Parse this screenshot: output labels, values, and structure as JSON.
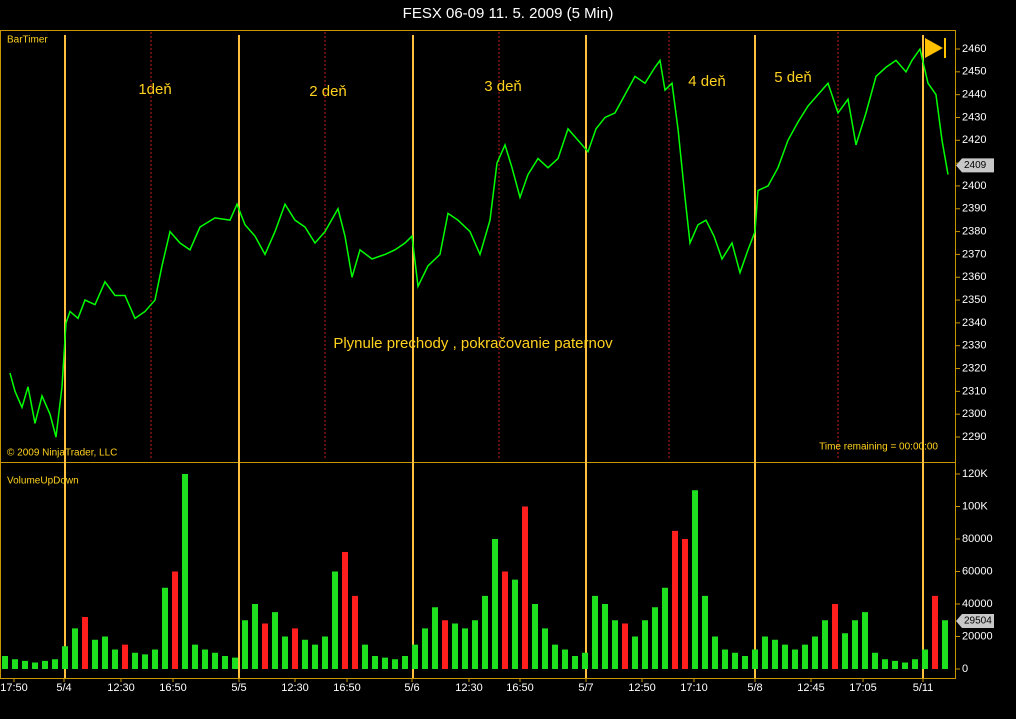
{
  "chart_data": [
    {
      "type": "line",
      "title": "FESX 06-09  11. 5. 2009 (5 Min)",
      "label": "BarTimer",
      "copyright": "© 2009 NinjaTrader, LLC",
      "status": "Time remaining = 00:00:00",
      "annotations": [
        "1deň",
        "2 deň",
        "3 deň",
        "4 deň",
        "5 deň",
        "Plynule prechody , pokračovanie paternov"
      ],
      "color": "#00ff00",
      "last_value": 2409,
      "xlim": [
        0,
        955
      ],
      "ylim": [
        2290,
        2460
      ],
      "yticks": [
        2290,
        2300,
        2310,
        2320,
        2330,
        2340,
        2350,
        2360,
        2370,
        2380,
        2390,
        2400,
        2410,
        2420,
        2430,
        2440,
        2450,
        2460
      ],
      "x": [
        10,
        15,
        22,
        28,
        35,
        42,
        50,
        56,
        62,
        66,
        70,
        78,
        85,
        95,
        105,
        115,
        125,
        135,
        145,
        155,
        162,
        170,
        180,
        190,
        200,
        215,
        230,
        237,
        245,
        255,
        265,
        275,
        285,
        295,
        305,
        315,
        325,
        338,
        345,
        352,
        360,
        372,
        385,
        395,
        405,
        412,
        418,
        428,
        440,
        448,
        458,
        470,
        480,
        490,
        497,
        505,
        512,
        520,
        528,
        538,
        548,
        558,
        568,
        578,
        588,
        596,
        605,
        615,
        625,
        635,
        645,
        655,
        660,
        665,
        672,
        678,
        685,
        690,
        698,
        706,
        714,
        722,
        732,
        740,
        748,
        755,
        758,
        768,
        778,
        788,
        798,
        808,
        818,
        828,
        838,
        848,
        856,
        866,
        876,
        886,
        896,
        906,
        912,
        920,
        928,
        936,
        942,
        948
      ],
      "values": [
        2318,
        2310,
        2303,
        2312,
        2296,
        2308,
        2300,
        2290,
        2312,
        2340,
        2345,
        2342,
        2350,
        2348,
        2358,
        2352,
        2352,
        2342,
        2345,
        2350,
        2365,
        2380,
        2375,
        2372,
        2382,
        2386,
        2385,
        2392,
        2383,
        2378,
        2370,
        2380,
        2392,
        2385,
        2382,
        2375,
        2380,
        2390,
        2378,
        2360,
        2372,
        2368,
        2370,
        2372,
        2375,
        2378,
        2356,
        2365,
        2370,
        2388,
        2385,
        2380,
        2370,
        2385,
        2410,
        2418,
        2408,
        2395,
        2405,
        2412,
        2408,
        2412,
        2425,
        2420,
        2415,
        2425,
        2430,
        2432,
        2440,
        2448,
        2445,
        2452,
        2455,
        2442,
        2445,
        2425,
        2395,
        2375,
        2383,
        2385,
        2378,
        2368,
        2375,
        2362,
        2372,
        2380,
        2398,
        2400,
        2408,
        2420,
        2428,
        2435,
        2440,
        2445,
        2432,
        2438,
        2418,
        2432,
        2448,
        2452,
        2455,
        2450,
        2455,
        2460,
        2445,
        2440,
        2420,
        2405
      ]
    },
    {
      "type": "bar",
      "label": "VolumeUpDown",
      "last_value": 29504,
      "xlim": [
        0,
        955
      ],
      "ylim": [
        0,
        120000
      ],
      "yticks": [
        0,
        20000,
        40000,
        60000,
        80000,
        {
          "value": 100000,
          "label": "100K"
        },
        {
          "value": 120000,
          "label": "120K"
        }
      ],
      "xticks": [
        {
          "value": 14,
          "label": "17:50"
        },
        {
          "value": 64,
          "label": "5/4"
        },
        {
          "value": 121,
          "label": "12:30"
        },
        {
          "value": 173,
          "label": "16:50"
        },
        {
          "value": 239,
          "label": "5/5"
        },
        {
          "value": 295,
          "label": "12:30"
        },
        {
          "value": 347,
          "label": "16:50"
        },
        {
          "value": 412,
          "label": "5/6"
        },
        {
          "value": 469,
          "label": "12:30"
        },
        {
          "value": 520,
          "label": "16:50"
        },
        {
          "value": 586,
          "label": "5/7"
        },
        {
          "value": 642,
          "label": "12:50"
        },
        {
          "value": 694,
          "label": "17:10"
        },
        {
          "value": 755,
          "label": "5/8"
        },
        {
          "value": 811,
          "label": "12:45"
        },
        {
          "value": 863,
          "label": "17:05"
        },
        {
          "value": 923,
          "label": "5/11"
        }
      ],
      "x": [
        5,
        15,
        25,
        35,
        45,
        55,
        65,
        75,
        85,
        95,
        105,
        115,
        125,
        135,
        145,
        155,
        165,
        175,
        185,
        195,
        205,
        215,
        225,
        235,
        245,
        255,
        265,
        275,
        285,
        295,
        305,
        315,
        325,
        335,
        345,
        355,
        365,
        375,
        385,
        395,
        405,
        415,
        425,
        435,
        445,
        455,
        465,
        475,
        485,
        495,
        505,
        515,
        525,
        535,
        545,
        555,
        565,
        575,
        585,
        595,
        605,
        615,
        625,
        635,
        645,
        655,
        665,
        675,
        685,
        695,
        705,
        715,
        725,
        735,
        745,
        755,
        765,
        775,
        785,
        795,
        805,
        815,
        825,
        835,
        845,
        855,
        865,
        875,
        885,
        895,
        905,
        915,
        925,
        935,
        945
      ],
      "values": [
        8000,
        6000,
        5000,
        4000,
        5000,
        6000,
        14000,
        25000,
        32000,
        18000,
        20000,
        12000,
        15000,
        10000,
        9000,
        12000,
        50000,
        60000,
        120000,
        15000,
        12000,
        10000,
        8000,
        7000,
        30000,
        40000,
        28000,
        35000,
        20000,
        25000,
        18000,
        15000,
        20000,
        60000,
        72000,
        45000,
        15000,
        8000,
        7000,
        6000,
        8000,
        15000,
        25000,
        38000,
        30000,
        28000,
        25000,
        30000,
        45000,
        80000,
        60000,
        55000,
        100000,
        40000,
        25000,
        15000,
        12000,
        8000,
        10000,
        45000,
        40000,
        30000,
        28000,
        20000,
        30000,
        38000,
        50000,
        85000,
        80000,
        110000,
        45000,
        20000,
        12000,
        10000,
        8000,
        12000,
        20000,
        18000,
        15000,
        12000,
        15000,
        20000,
        30000,
        40000,
        22000,
        30000,
        35000,
        10000,
        6000,
        5000,
        4000,
        6000,
        12000,
        45000,
        30000
      ],
      "colors": [
        "#1ee01e",
        "#1ee01e",
        "#1ee01e",
        "#1ee01e",
        "#1ee01e",
        "#1ee01e",
        "#1ee01e",
        "#1ee01e",
        "#ff1e1e",
        "#1ee01e",
        "#1ee01e",
        "#1ee01e",
        "#ff1e1e",
        "#1ee01e",
        "#1ee01e",
        "#1ee01e",
        "#1ee01e",
        "#ff1e1e",
        "#1ee01e",
        "#1ee01e",
        "#1ee01e",
        "#1ee01e",
        "#1ee01e",
        "#1ee01e",
        "#1ee01e",
        "#1ee01e",
        "#ff1e1e",
        "#1ee01e",
        "#1ee01e",
        "#ff1e1e",
        "#1ee01e",
        "#1ee01e",
        "#1ee01e",
        "#1ee01e",
        "#ff1e1e",
        "#ff1e1e",
        "#1ee01e",
        "#1ee01e",
        "#1ee01e",
        "#1ee01e",
        "#1ee01e",
        "#1ee01e",
        "#1ee01e",
        "#1ee01e",
        "#ff1e1e",
        "#1ee01e",
        "#1ee01e",
        "#1ee01e",
        "#1ee01e",
        "#1ee01e",
        "#ff1e1e",
        "#1ee01e",
        "#ff1e1e",
        "#1ee01e",
        "#1ee01e",
        "#1ee01e",
        "#1ee01e",
        "#1ee01e",
        "#1ee01e",
        "#1ee01e",
        "#1ee01e",
        "#1ee01e",
        "#ff1e1e",
        "#1ee01e",
        "#1ee01e",
        "#1ee01e",
        "#1ee01e",
        "#ff1e1e",
        "#ff1e1e",
        "#1ee01e",
        "#1ee01e",
        "#1ee01e",
        "#1ee01e",
        "#1ee01e",
        "#1ee01e",
        "#1ee01e",
        "#1ee01e",
        "#1ee01e",
        "#1ee01e",
        "#1ee01e",
        "#1ee01e",
        "#1ee01e",
        "#1ee01e",
        "#ff1e1e",
        "#1ee01e",
        "#1ee01e",
        "#1ee01e",
        "#1ee01e",
        "#1ee01e",
        "#1ee01e",
        "#1ee01e",
        "#1ee01e",
        "#1ee01e",
        "#ff1e1e",
        "#1ee01e"
      ]
    }
  ]
}
